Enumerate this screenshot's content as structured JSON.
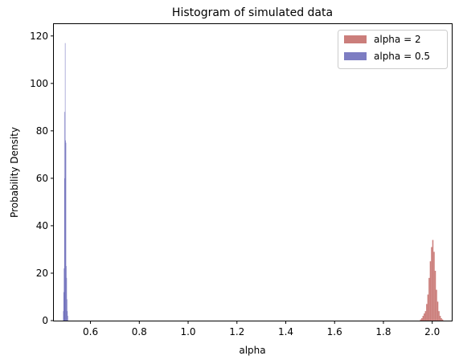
{
  "chart_data": {
    "type": "bar",
    "title": "Histogram of simulated data",
    "xlabel": "alpha",
    "ylabel": "Probability Density",
    "xlim": [
      0.45,
      2.08
    ],
    "ylim": [
      0,
      125
    ],
    "xticks": [
      0.6,
      0.8,
      1.0,
      1.2,
      1.4,
      1.6,
      1.8,
      2.0
    ],
    "xtick_labels": [
      "0.6",
      "0.8",
      "1.0",
      "1.2",
      "1.4",
      "1.6",
      "1.8",
      "2.0"
    ],
    "yticks": [
      0,
      20,
      40,
      60,
      80,
      100,
      120
    ],
    "ytick_labels": [
      "0",
      "20",
      "40",
      "60",
      "80",
      "100",
      "120"
    ],
    "grid": false,
    "legend_position": "top-right",
    "series": [
      {
        "name": "alpha = 2",
        "color": "#b9534f",
        "opacity": 0.75,
        "bins": [
          [
            1.95,
            1.955,
            0.5
          ],
          [
            1.955,
            1.96,
            1.0
          ],
          [
            1.96,
            1.965,
            2.0
          ],
          [
            1.965,
            1.97,
            3.0
          ],
          [
            1.97,
            1.975,
            4.0
          ],
          [
            1.975,
            1.98,
            7.0
          ],
          [
            1.98,
            1.985,
            11.0
          ],
          [
            1.985,
            1.99,
            18.0
          ],
          [
            1.99,
            1.995,
            25.0
          ],
          [
            1.995,
            2.0,
            31.0
          ],
          [
            2.0,
            2.005,
            34.0
          ],
          [
            2.005,
            2.01,
            29.0
          ],
          [
            2.01,
            2.015,
            21.0
          ],
          [
            2.015,
            2.02,
            13.0
          ],
          [
            2.02,
            2.025,
            8.0
          ],
          [
            2.025,
            2.03,
            4.0
          ],
          [
            2.03,
            2.035,
            2.0
          ],
          [
            2.035,
            2.04,
            1.0
          ],
          [
            2.04,
            2.045,
            0.5
          ]
        ]
      },
      {
        "name": "alpha = 0.5",
        "color": "#5151ad",
        "opacity": 0.75,
        "bins": [
          [
            0.488,
            0.4895,
            4.0
          ],
          [
            0.4895,
            0.491,
            12.0
          ],
          [
            0.491,
            0.4925,
            22.0
          ],
          [
            0.4925,
            0.494,
            88.0
          ],
          [
            0.494,
            0.4955,
            60.0
          ],
          [
            0.4955,
            0.497,
            117.0
          ],
          [
            0.497,
            0.4985,
            76.0
          ],
          [
            0.4985,
            0.5,
            75.0
          ],
          [
            0.5,
            0.5015,
            23.0
          ],
          [
            0.5015,
            0.503,
            18.0
          ],
          [
            0.503,
            0.5045,
            9.0
          ],
          [
            0.5045,
            0.506,
            4.0
          ],
          [
            0.506,
            0.5075,
            2.0
          ]
        ]
      }
    ]
  }
}
